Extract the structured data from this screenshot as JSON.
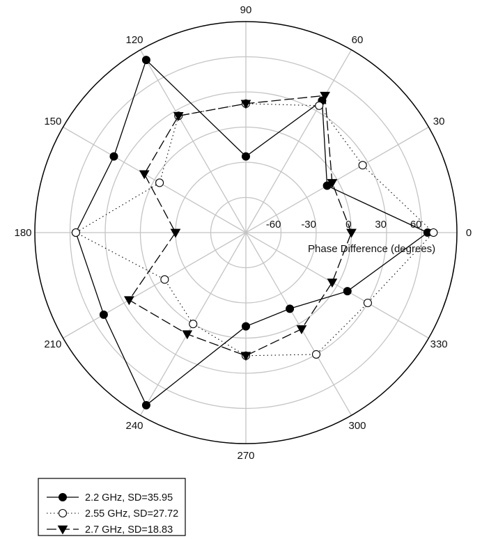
{
  "chart_data": {
    "type": "polar",
    "axis_label": "Phase Difference (degrees)",
    "radial_range": [
      -90,
      90
    ],
    "radial_ticks": [
      -60,
      -30,
      0,
      30,
      60
    ],
    "radial_tick_labels": [
      "-60",
      "-30",
      "0",
      "30",
      "60"
    ],
    "angular_ticks": [
      0,
      30,
      60,
      90,
      120,
      150,
      180,
      210,
      240,
      270,
      300,
      330
    ],
    "angular_tick_labels": [
      "0",
      "30",
      "60",
      "90",
      "120",
      "150",
      "180",
      "210",
      "240",
      "270",
      "300",
      "330"
    ],
    "grid": true,
    "legend_position": "bottom-left",
    "series": [
      {
        "name": "2.2 GHz, SD=35.95",
        "line_style": "solid",
        "marker": "filled-circle",
        "points": [
          {
            "angle": 0,
            "value": 65
          },
          {
            "angle": 30,
            "value": -10
          },
          {
            "angle": 60,
            "value": 40
          },
          {
            "angle": 90,
            "value": -25
          },
          {
            "angle": 120,
            "value": 80
          },
          {
            "angle": 150,
            "value": 40
          },
          {
            "angle": 180,
            "value": 55
          },
          {
            "angle": 210,
            "value": 50
          },
          {
            "angle": 240,
            "value": 80
          },
          {
            "angle": 270,
            "value": -10
          },
          {
            "angle": 300,
            "value": -15
          },
          {
            "angle": 330,
            "value": 10
          }
        ]
      },
      {
        "name": "2.55 GHz, SD=27.72",
        "line_style": "dotted",
        "marker": "open-circle",
        "points": [
          {
            "angle": 0,
            "value": 70
          },
          {
            "angle": 30,
            "value": 25
          },
          {
            "angle": 60,
            "value": 35
          },
          {
            "angle": 90,
            "value": 20
          },
          {
            "angle": 120,
            "value": 25
          },
          {
            "angle": 150,
            "value": -5
          },
          {
            "angle": 180,
            "value": 55
          },
          {
            "angle": 210,
            "value": -10
          },
          {
            "angle": 240,
            "value": 0
          },
          {
            "angle": 270,
            "value": 15
          },
          {
            "angle": 300,
            "value": 30
          },
          {
            "angle": 330,
            "value": 30
          }
        ]
      },
      {
        "name": "2.7 GHz, SD=18.83",
        "line_style": "dashed",
        "marker": "filled-triangle-down",
        "points": [
          {
            "angle": 0,
            "value": 0
          },
          {
            "angle": 30,
            "value": -5
          },
          {
            "angle": 60,
            "value": 45
          },
          {
            "angle": 90,
            "value": 20
          },
          {
            "angle": 120,
            "value": 25
          },
          {
            "angle": 150,
            "value": 10
          },
          {
            "angle": 180,
            "value": -30
          },
          {
            "angle": 210,
            "value": 25
          },
          {
            "angle": 240,
            "value": 10
          },
          {
            "angle": 270,
            "value": 15
          },
          {
            "angle": 300,
            "value": 5
          },
          {
            "angle": 330,
            "value": -5
          }
        ]
      }
    ]
  }
}
